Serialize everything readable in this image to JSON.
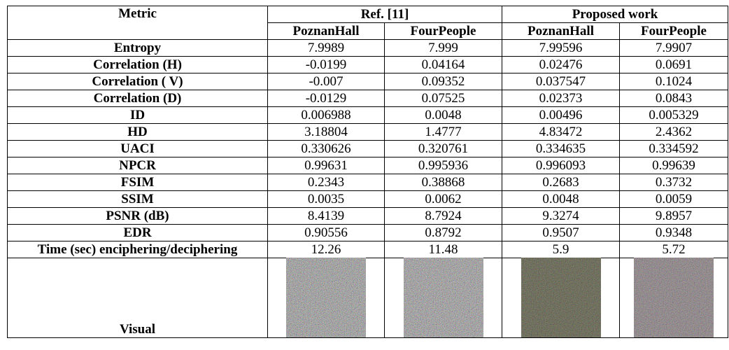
{
  "table": {
    "header": [
      "Metric",
      "Ref. [11]",
      "Proposed work"
    ],
    "subheader": [
      "PoznanHall",
      "FourPeople",
      "PoznanHall",
      "FourPeople"
    ],
    "rows": [
      [
        "Entropy",
        "7.9989",
        "7.999",
        "7.99596",
        "7.9907"
      ],
      [
        "Correlation (H)",
        "-0.0199",
        "0.04164",
        "0.02476",
        "0.0691"
      ],
      [
        "Correlation ( V)",
        "-0.007",
        "0.09352",
        "0.037547",
        "0.1024"
      ],
      [
        "Correlation (D)",
        "-0.0129",
        "0.07525",
        "0.02373",
        "0.0843"
      ],
      [
        "ID",
        "0.006988",
        "0.0048",
        "0.00496",
        "0.005329"
      ],
      [
        "HD",
        "3.18804",
        "1.4777",
        "4.83472",
        "2.4362"
      ],
      [
        "UACI",
        "0.330626",
        "0.320761",
        "0.334635",
        "0.334592"
      ],
      [
        "NPCR",
        "0.99631",
        "0.995936",
        "0.996093",
        "0.99639"
      ],
      [
        "FSIM",
        "0.2343",
        "0.38868",
        "0.2683",
        "0.3732"
      ],
      [
        "SSIM",
        "0.0035",
        "0.0062",
        "0.0048",
        "0.0059"
      ],
      [
        "PSNR (dB)",
        "8.4139",
        "8.7924",
        "9.3274",
        "9.8957"
      ],
      [
        "EDR",
        "0.90556",
        "0.8792",
        "0.9507",
        "0.9348"
      ],
      [
        "Time (sec) enciphering/deciphering",
        "12.26",
        "11.48",
        "5.9",
        "5.72"
      ]
    ],
    "visual_label": "Visual"
  }
}
